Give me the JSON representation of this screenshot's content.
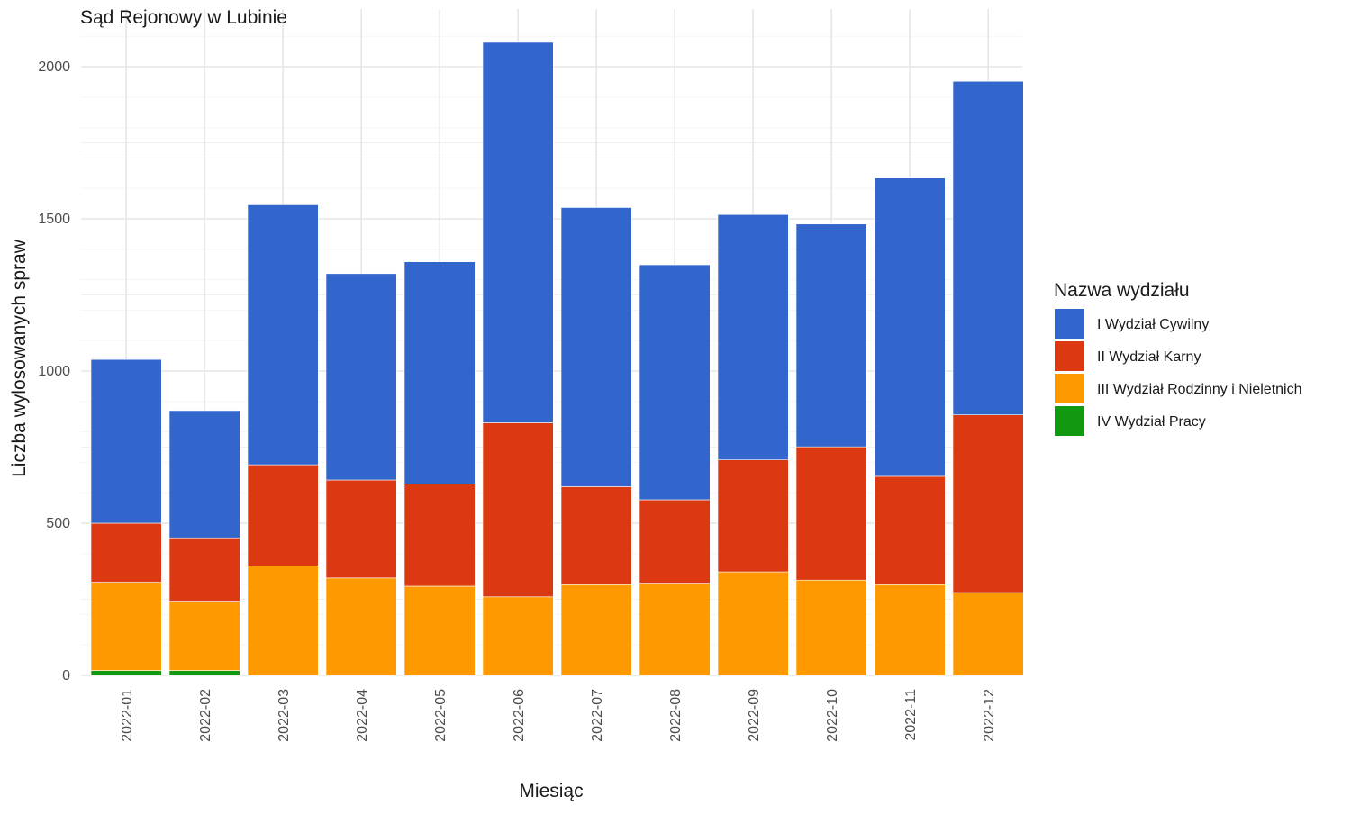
{
  "chart_data": {
    "type": "bar",
    "stacked": true,
    "title": "Sąd Rejonowy w Lubinie",
    "xlabel": "Miesiąc",
    "ylabel": "Liczba wylosowanych spraw",
    "ylim": [
      0,
      2100
    ],
    "yticks": [
      0,
      500,
      1000,
      1500,
      2000
    ],
    "grid": true,
    "legend_title": "Nazwa wydziału",
    "legend_position": "right",
    "categories": [
      "2022-01",
      "2022-02",
      "2022-03",
      "2022-04",
      "2022-05",
      "2022-06",
      "2022-07",
      "2022-08",
      "2022-09",
      "2022-10",
      "2022-11",
      "2022-12"
    ],
    "series": [
      {
        "name": "IV Wydział Pracy",
        "color": "#119911",
        "values": [
          16,
          16,
          0,
          0,
          0,
          0,
          0,
          0,
          0,
          0,
          0,
          0
        ]
      },
      {
        "name": "III Wydział Rodzinny i Nieletnich",
        "color": "#FF9900",
        "values": [
          290,
          228,
          360,
          320,
          293,
          258,
          298,
          303,
          340,
          313,
          298,
          272
        ]
      },
      {
        "name": "II Wydział Karny",
        "color": "#DC3912",
        "values": [
          194,
          208,
          332,
          322,
          336,
          572,
          322,
          274,
          368,
          438,
          356,
          584
        ]
      },
      {
        "name": "I Wydział Cywilny",
        "color": "#3366CC",
        "values": [
          538,
          418,
          854,
          678,
          730,
          1250,
          917,
          772,
          806,
          732,
          980,
          1096
        ]
      }
    ],
    "legend_order": [
      "I Wydział Cywilny",
      "II Wydział Karny",
      "III Wydział Rodzinny i Nieletnich",
      "IV Wydział Pracy"
    ]
  }
}
